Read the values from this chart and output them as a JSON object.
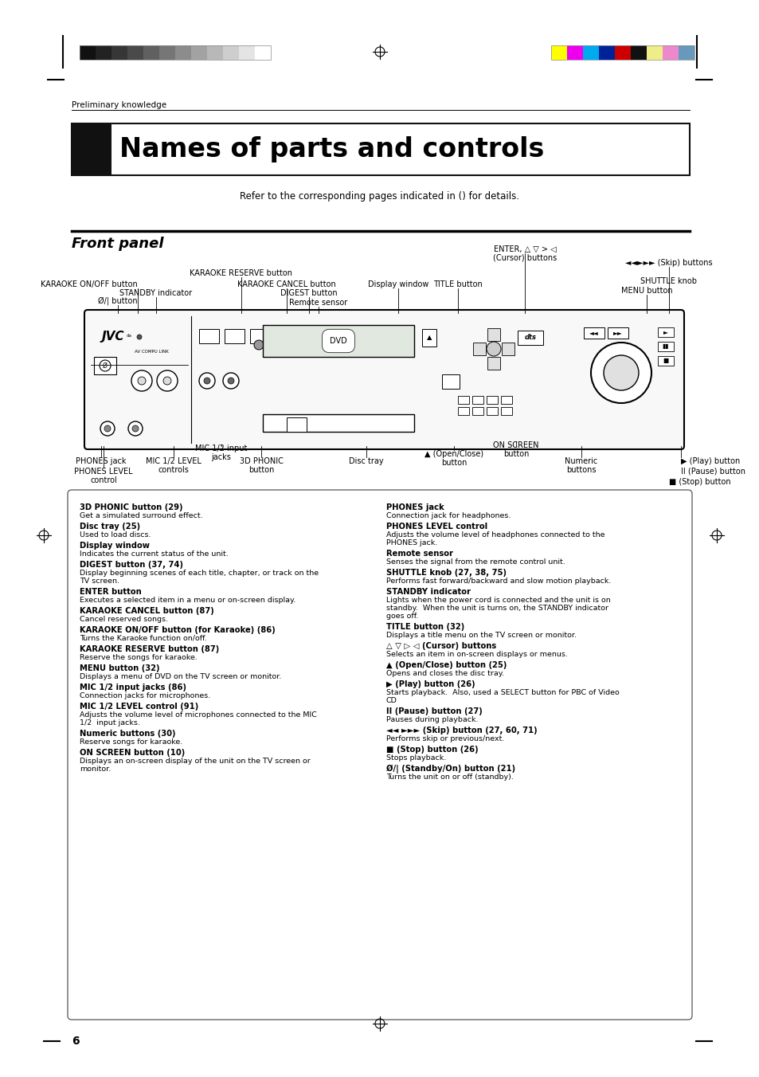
{
  "page_bg": "#ffffff",
  "top_bar_colors_left": [
    "#111111",
    "#222222",
    "#363636",
    "#4a4a4a",
    "#606060",
    "#767676",
    "#8c8c8c",
    "#a2a2a2",
    "#b8b8b8",
    "#cecece",
    "#e4e4e4",
    "#ffffff"
  ],
  "top_bar_colors_right": [
    "#ffff00",
    "#ee00ee",
    "#00aaee",
    "#002299",
    "#cc0000",
    "#111111",
    "#eeee88",
    "#ee88cc",
    "#6699bb"
  ],
  "preliminary_text": "Preliminary knowledge",
  "title_text": "Names of parts and controls",
  "subtitle_text": "Refer to the corresponding pages indicated in () for details.",
  "section_title": "Front panel",
  "desc_items_left": [
    {
      "bold": "3D PHONIC button (29)",
      "normal": "Get a simulated surround effect."
    },
    {
      "bold": "Disc tray (25)",
      "normal": "Used to load discs."
    },
    {
      "bold": "Display window",
      "normal": "Indicates the current status of the unit."
    },
    {
      "bold": "DIGEST button (37, 74)",
      "normal": "Display beginning scenes of each title, chapter, or track on the\nTV screen."
    },
    {
      "bold": "ENTER button",
      "normal": "Executes a selected item in a menu or on-screen display."
    },
    {
      "bold": "KARAOKE CANCEL button (87)",
      "normal": "Cancel reserved songs."
    },
    {
      "bold": "KARAOKE ON/OFF button (for Karaoke) (86)",
      "normal": "Turns the Karaoke function on/off."
    },
    {
      "bold": "KARAOKE RESERVE button (87)",
      "normal": "Reserve the songs for karaoke."
    },
    {
      "bold": "MENU button (32)",
      "normal": "Displays a menu of DVD on the TV screen or monitor."
    },
    {
      "bold": "MIC 1/2 input jacks (86)",
      "normal": "Connection jacks for microphones."
    },
    {
      "bold": "MIC 1/2 LEVEL control (91)",
      "normal": "Adjusts the volume level of microphones connected to the MIC\n1/2  input jacks."
    },
    {
      "bold": "Numeric buttons (30)",
      "normal": "Reserve songs for karaoke."
    },
    {
      "bold": "ON SCREEN button (10)",
      "normal": "Displays an on-screen display of the unit on the TV screen or\nmonitor."
    }
  ],
  "desc_items_right": [
    {
      "bold": "PHONES jack",
      "normal": "Connection jack for headphones."
    },
    {
      "bold": "PHONES LEVEL control",
      "normal": "Adjusts the volume level of headphones connected to the\nPHONES jack."
    },
    {
      "bold": "Remote sensor",
      "normal": "Senses the signal from the remote control unit."
    },
    {
      "bold": "SHUTTLE knob (27, 38, 75)",
      "normal": "Performs fast forward/backward and slow motion playback."
    },
    {
      "bold": "STANDBY indicator",
      "normal": "Lights when the power cord is connected and the unit is on\nstandby.  When the unit is turns on, the STANDBY indicator\ngoes off."
    },
    {
      "bold": "TITLE button (32)",
      "normal": "Displays a title menu on the TV screen or monitor."
    },
    {
      "bold": "△ ▽ ▷ ◁ (Cursor) buttons",
      "normal": "Selects an item in on-screen displays or menus."
    },
    {
      "bold": "▲ (Open/Close) button (25)",
      "normal": "Opens and closes the disc tray."
    },
    {
      "bold": "▶ (Play) button (26)",
      "normal": "Starts playback.  Also, used a SELECT button for PBC of Video\nCD"
    },
    {
      "bold": "II (Pause) button (27)",
      "normal": "Pauses during playback."
    },
    {
      "bold": "◄◄ ►►► (Skip) button (27, 60, 71)",
      "normal": "Performs skip or previous/next."
    },
    {
      "bold": "■ (Stop) button (26)",
      "normal": "Stops playback."
    },
    {
      "bold": "Ø/| (Standby/On) button (21)",
      "normal": "Turns the unit on or off (standby)."
    }
  ],
  "page_number": "6"
}
